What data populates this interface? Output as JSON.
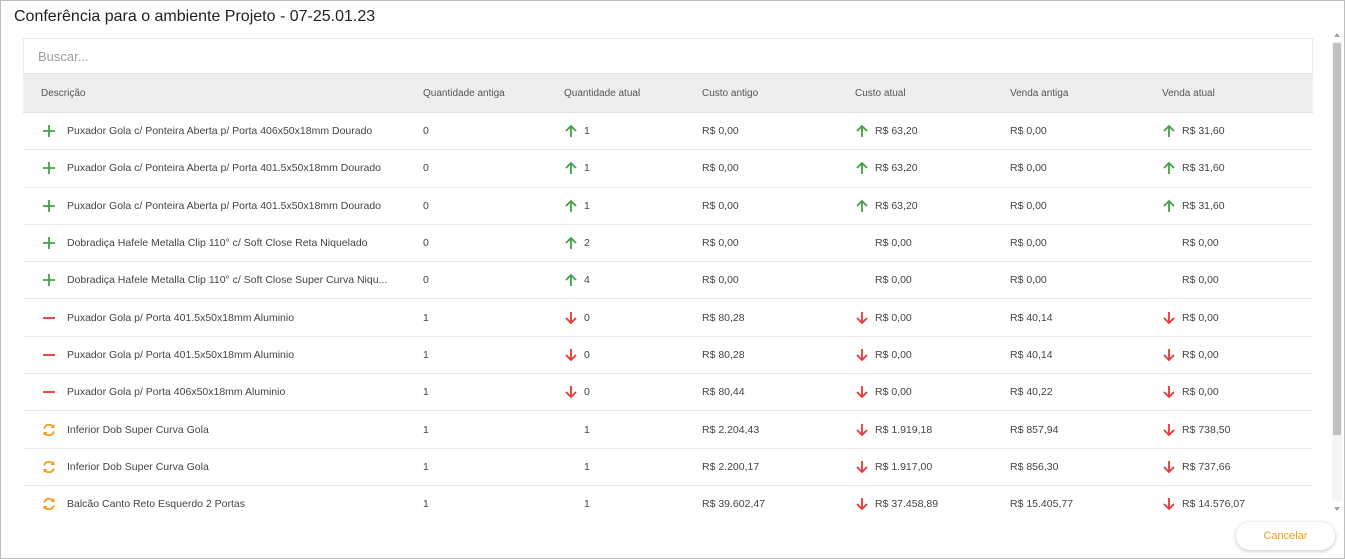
{
  "dialog": {
    "title": "Conferência para o ambiente Projeto - 07-25.01.23"
  },
  "search": {
    "placeholder": "Buscar..."
  },
  "table": {
    "headers": {
      "descricao": "Descrição",
      "qtd_antiga": "Quantidade antiga",
      "qtd_atual": "Quantidade atual",
      "custo_antigo": "Custo antigo",
      "custo_atual": "Custo atual",
      "venda_antiga": "Venda antiga",
      "venda_atual": "Venda atual"
    },
    "rows": [
      {
        "status": "added",
        "descricao": "Puxador Gola c/ Ponteira Aberta p/ Porta 406x50x18mm Dourado",
        "qtd_antiga": "0",
        "qtd_atual": "1",
        "qtd_trend": "up",
        "custo_antigo": "R$ 0,00",
        "custo_atual": "R$ 63,20",
        "custo_trend": "up",
        "venda_antiga": "R$ 0,00",
        "venda_atual": "R$ 31,60",
        "venda_trend": "up"
      },
      {
        "status": "added",
        "descricao": "Puxador Gola c/ Ponteira Aberta p/ Porta 401.5x50x18mm Dourado",
        "qtd_antiga": "0",
        "qtd_atual": "1",
        "qtd_trend": "up",
        "custo_antigo": "R$ 0,00",
        "custo_atual": "R$ 63,20",
        "custo_trend": "up",
        "venda_antiga": "R$ 0,00",
        "venda_atual": "R$ 31,60",
        "venda_trend": "up"
      },
      {
        "status": "added",
        "descricao": "Puxador Gola c/ Ponteira Aberta p/ Porta 401.5x50x18mm Dourado",
        "qtd_antiga": "0",
        "qtd_atual": "1",
        "qtd_trend": "up",
        "custo_antigo": "R$ 0,00",
        "custo_atual": "R$ 63,20",
        "custo_trend": "up",
        "venda_antiga": "R$ 0,00",
        "venda_atual": "R$ 31,60",
        "venda_trend": "up"
      },
      {
        "status": "added",
        "descricao": "Dobradiça Hafele Metalla Clip 110° c/ Soft Close Reta Niquelado",
        "qtd_antiga": "0",
        "qtd_atual": "2",
        "qtd_trend": "up",
        "custo_antigo": "R$ 0,00",
        "custo_atual": "R$ 0,00",
        "custo_trend": "none",
        "venda_antiga": "R$ 0,00",
        "venda_atual": "R$ 0,00",
        "venda_trend": "none"
      },
      {
        "status": "added",
        "descricao": "Dobradiça Hafele Metalla Clip 110° c/ Soft Close Super Curva Niqu...",
        "qtd_antiga": "0",
        "qtd_atual": "4",
        "qtd_trend": "up",
        "custo_antigo": "R$ 0,00",
        "custo_atual": "R$ 0,00",
        "custo_trend": "none",
        "venda_antiga": "R$ 0,00",
        "venda_atual": "R$ 0,00",
        "venda_trend": "none"
      },
      {
        "status": "removed",
        "descricao": "Puxador Gola p/ Porta 401.5x50x18mm Aluminio",
        "qtd_antiga": "1",
        "qtd_atual": "0",
        "qtd_trend": "down",
        "custo_antigo": "R$ 80,28",
        "custo_atual": "R$ 0,00",
        "custo_trend": "down",
        "venda_antiga": "R$ 40,14",
        "venda_atual": "R$ 0,00",
        "venda_trend": "down"
      },
      {
        "status": "removed",
        "descricao": "Puxador Gola p/ Porta 401.5x50x18mm Aluminio",
        "qtd_antiga": "1",
        "qtd_atual": "0",
        "qtd_trend": "down",
        "custo_antigo": "R$ 80,28",
        "custo_atual": "R$ 0,00",
        "custo_trend": "down",
        "venda_antiga": "R$ 40,14",
        "venda_atual": "R$ 0,00",
        "venda_trend": "down"
      },
      {
        "status": "removed",
        "descricao": "Puxador Gola p/ Porta 406x50x18mm Aluminio",
        "qtd_antiga": "1",
        "qtd_atual": "0",
        "qtd_trend": "down",
        "custo_antigo": "R$ 80,44",
        "custo_atual": "R$ 0,00",
        "custo_trend": "down",
        "venda_antiga": "R$ 40,22",
        "venda_atual": "R$ 0,00",
        "venda_trend": "down"
      },
      {
        "status": "changed",
        "descricao": "Inferior Dob Super Curva Gola",
        "qtd_antiga": "1",
        "qtd_atual": "1",
        "qtd_trend": "none",
        "custo_antigo": "R$ 2.204,43",
        "custo_atual": "R$ 1.919,18",
        "custo_trend": "down",
        "venda_antiga": "R$ 857,94",
        "venda_atual": "R$ 738,50",
        "venda_trend": "down"
      },
      {
        "status": "changed",
        "descricao": "Inferior Dob Super Curva Gola",
        "qtd_antiga": "1",
        "qtd_atual": "1",
        "qtd_trend": "none",
        "custo_antigo": "R$ 2.200,17",
        "custo_atual": "R$ 1.917,00",
        "custo_trend": "down",
        "venda_antiga": "R$ 856,30",
        "venda_atual": "R$ 737,66",
        "venda_trend": "down"
      },
      {
        "status": "changed",
        "descricao": "Balcão Canto Reto Esquerdo 2 Portas",
        "qtd_antiga": "1",
        "qtd_atual": "1",
        "qtd_trend": "none",
        "custo_antigo": "R$ 39.602,47",
        "custo_atual": "R$ 37.458,89",
        "custo_trend": "down",
        "venda_antiga": "R$ 15.405,77",
        "venda_atual": "R$ 14.576,07",
        "venda_trend": "down"
      }
    ]
  },
  "footer": {
    "cancel_label": "Cancelar"
  },
  "colors": {
    "added": "#43a047",
    "removed": "#e53935",
    "changed": "#f39c12",
    "up": "#43a047",
    "down": "#e53935"
  },
  "icons": {
    "added": "plus-icon",
    "removed": "minus-icon",
    "changed": "sync-icon",
    "up": "arrow-up-icon",
    "down": "arrow-down-icon"
  }
}
